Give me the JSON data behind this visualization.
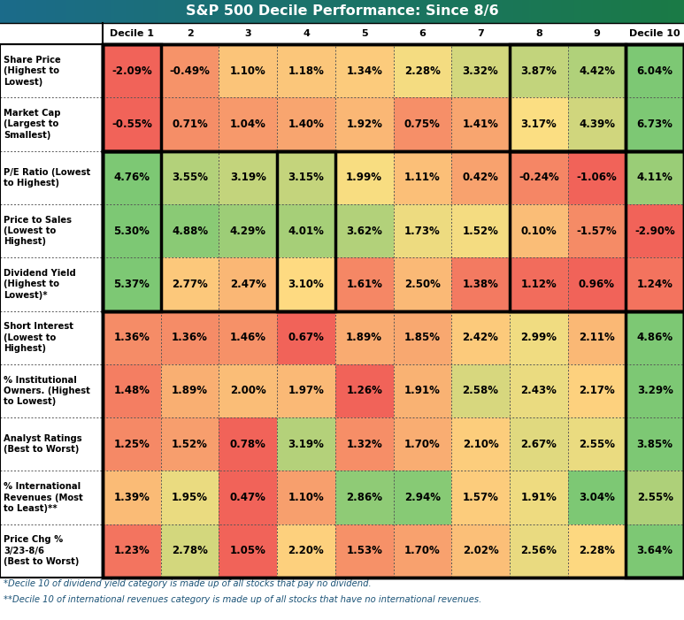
{
  "title": "S&P 500 Decile Performance: Since 8/6",
  "col_headers": [
    "Decile 1",
    "2",
    "3",
    "4",
    "5",
    "6",
    "7",
    "8",
    "9",
    "Decile 10"
  ],
  "row_labels": [
    "Share Price\n(Highest to\nLowest)",
    "Market Cap\n(Largest to\nSmallest)",
    "P/E Ratio (Lowest\nto Highest)",
    "Price to Sales\n(Lowest to\nHighest)",
    "Dividend Yield\n(Highest to\nLowest)*",
    "Short Interest\n(Lowest to\nHighest)",
    "% Institutional\nOwners. (Highest\nto Lowest)",
    "Analyst Ratings\n(Best to Worst)",
    "% International\nRevenues (Most\nto Least)**",
    "Price Chg %\n3/23-8/6\n(Best to Worst)"
  ],
  "values": [
    [
      -2.09,
      -0.49,
      1.1,
      1.18,
      1.34,
      2.28,
      3.32,
      3.87,
      4.42,
      6.04
    ],
    [
      -0.55,
      0.71,
      1.04,
      1.4,
      1.92,
      0.75,
      1.41,
      3.17,
      4.39,
      6.73
    ],
    [
      4.76,
      3.55,
      3.19,
      3.15,
      1.99,
      1.11,
      0.42,
      -0.24,
      -1.06,
      4.11
    ],
    [
      5.3,
      4.88,
      4.29,
      4.01,
      3.62,
      1.73,
      1.52,
      0.1,
      -1.57,
      -2.9
    ],
    [
      5.37,
      2.77,
      2.47,
      3.1,
      1.61,
      2.5,
      1.38,
      1.12,
      0.96,
      1.24
    ],
    [
      1.36,
      1.36,
      1.46,
      0.67,
      1.89,
      1.85,
      2.42,
      2.99,
      2.11,
      4.86
    ],
    [
      1.48,
      1.89,
      2.0,
      1.97,
      1.26,
      1.91,
      2.58,
      2.43,
      2.17,
      3.29
    ],
    [
      1.25,
      1.52,
      0.78,
      3.19,
      1.32,
      1.7,
      2.1,
      2.67,
      2.55,
      3.85
    ],
    [
      1.39,
      1.95,
      0.47,
      1.1,
      2.86,
      2.94,
      1.57,
      1.91,
      3.04,
      2.55
    ],
    [
      1.23,
      2.78,
      1.05,
      2.2,
      1.53,
      1.7,
      2.02,
      2.56,
      2.28,
      3.64
    ]
  ],
  "footnote1": "*Decile 10 of dividend yield category is made up of all stocks that pay no dividend.",
  "footnote2": "**Decile 10 of international revenues category is made up of all stocks that have no international revenues.",
  "color_low": [
    0.945,
    0.392,
    0.353
  ],
  "color_mid": [
    0.996,
    0.878,
    0.51
  ],
  "color_high": [
    0.494,
    0.773,
    0.455
  ],
  "color_high2": [
    0.18,
    0.62,
    0.341
  ]
}
